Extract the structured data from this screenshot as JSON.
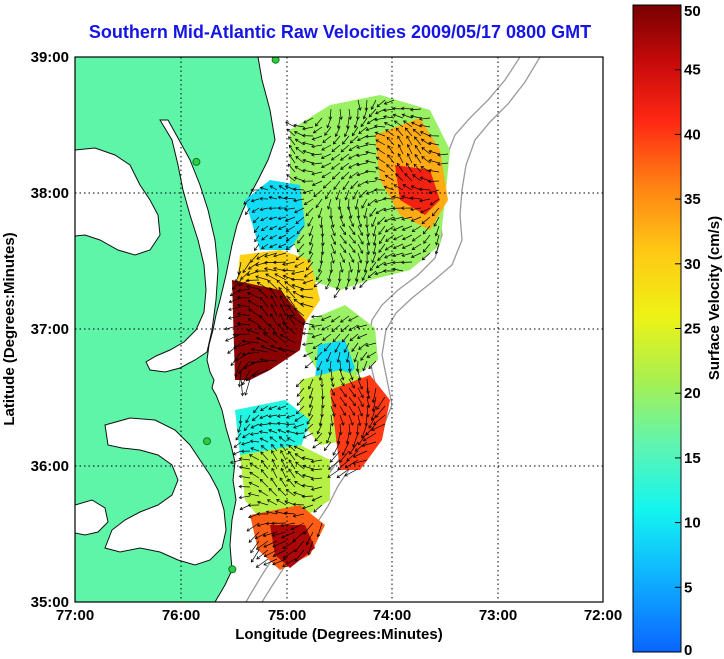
{
  "title": "Southern Mid-Atlantic Raw Velocities 2009/05/17 0800 GMT",
  "map": {
    "xlabel": "Longitude (Degrees:Minutes)",
    "ylabel": "Latitude (Degrees:Minutes)",
    "lon_ticks": [
      "77:00",
      "76:00",
      "75:00",
      "74:00",
      "73:00",
      "72:00"
    ],
    "lat_ticks": [
      "39:00",
      "38:00",
      "37:00",
      "36:00",
      "35:00"
    ],
    "lon_range": [
      -77,
      -72
    ],
    "lat_range": [
      35,
      39
    ],
    "grid": true
  },
  "colorbar": {
    "label": "Surface Velocity (cm/s)",
    "min": 0,
    "max": 50,
    "ticks": [
      "0",
      "5",
      "10",
      "15",
      "20",
      "25",
      "30",
      "35",
      "40",
      "45",
      "50"
    ]
  },
  "colors": {
    "title": "#1515e6",
    "land": "#5ef5a8",
    "coastline": "#111111",
    "bathymetry": "#9a9a9a",
    "station": "#2ecc40"
  },
  "stations": [
    {
      "lon": -75.1,
      "lat": 38.98
    },
    {
      "lon": -75.85,
      "lat": 38.23
    },
    {
      "lon": -75.75,
      "lat": 36.18
    },
    {
      "lon": -75.51,
      "lat": 35.24
    }
  ]
}
